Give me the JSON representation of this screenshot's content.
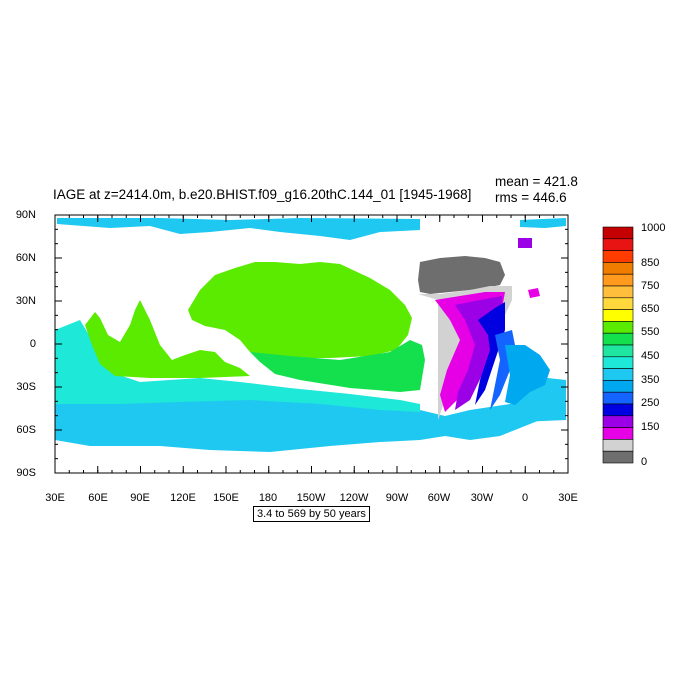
{
  "title": "IAGE at z=2414.0m, b.e20.BHIST.f09_g16.20thC.144_01 [1945-1968]",
  "stats": {
    "mean": "mean = 421.8",
    "rms": "rms = 446.6"
  },
  "note": "3.4 to 569 by 50 years",
  "lat_labels": [
    "90N",
    "60N",
    "30N",
    "0",
    "30S",
    "60S",
    "90S"
  ],
  "lon_labels": [
    "30E",
    "60E",
    "90E",
    "120E",
    "150E",
    "180",
    "150W",
    "120W",
    "90W",
    "60W",
    "30W",
    "0",
    "30E"
  ],
  "colorbar": {
    "levels": [
      "1000",
      "850",
      "750",
      "650",
      "550",
      "450",
      "350",
      "250",
      "150",
      "0"
    ],
    "colors": [
      "#c40000",
      "#e81414",
      "#ff3c00",
      "#f07c00",
      "#ff9a1e",
      "#ffbe3c",
      "#ffd93c",
      "#ffff00",
      "#5aeb00",
      "#14e04e",
      "#1ee6a0",
      "#1ee8d8",
      "#1ec8f0",
      "#00a8f0",
      "#1464ff",
      "#0000e0",
      "#9b00e6",
      "#e600e6",
      "#d2d2d2",
      "#6e6e6e"
    ]
  },
  "map_colors": {
    "green_light": "#5aeb00",
    "green_mid": "#14e04e",
    "cyan": "#1ee8d8",
    "light_blue": "#1ec8f0",
    "sky_blue": "#00a8f0",
    "blue": "#1464ff",
    "dark_blue": "#0000e0",
    "purple": "#9b00e6",
    "magenta": "#e600e6",
    "light_gray": "#d2d2d2",
    "dark_gray": "#6e6e6e"
  }
}
